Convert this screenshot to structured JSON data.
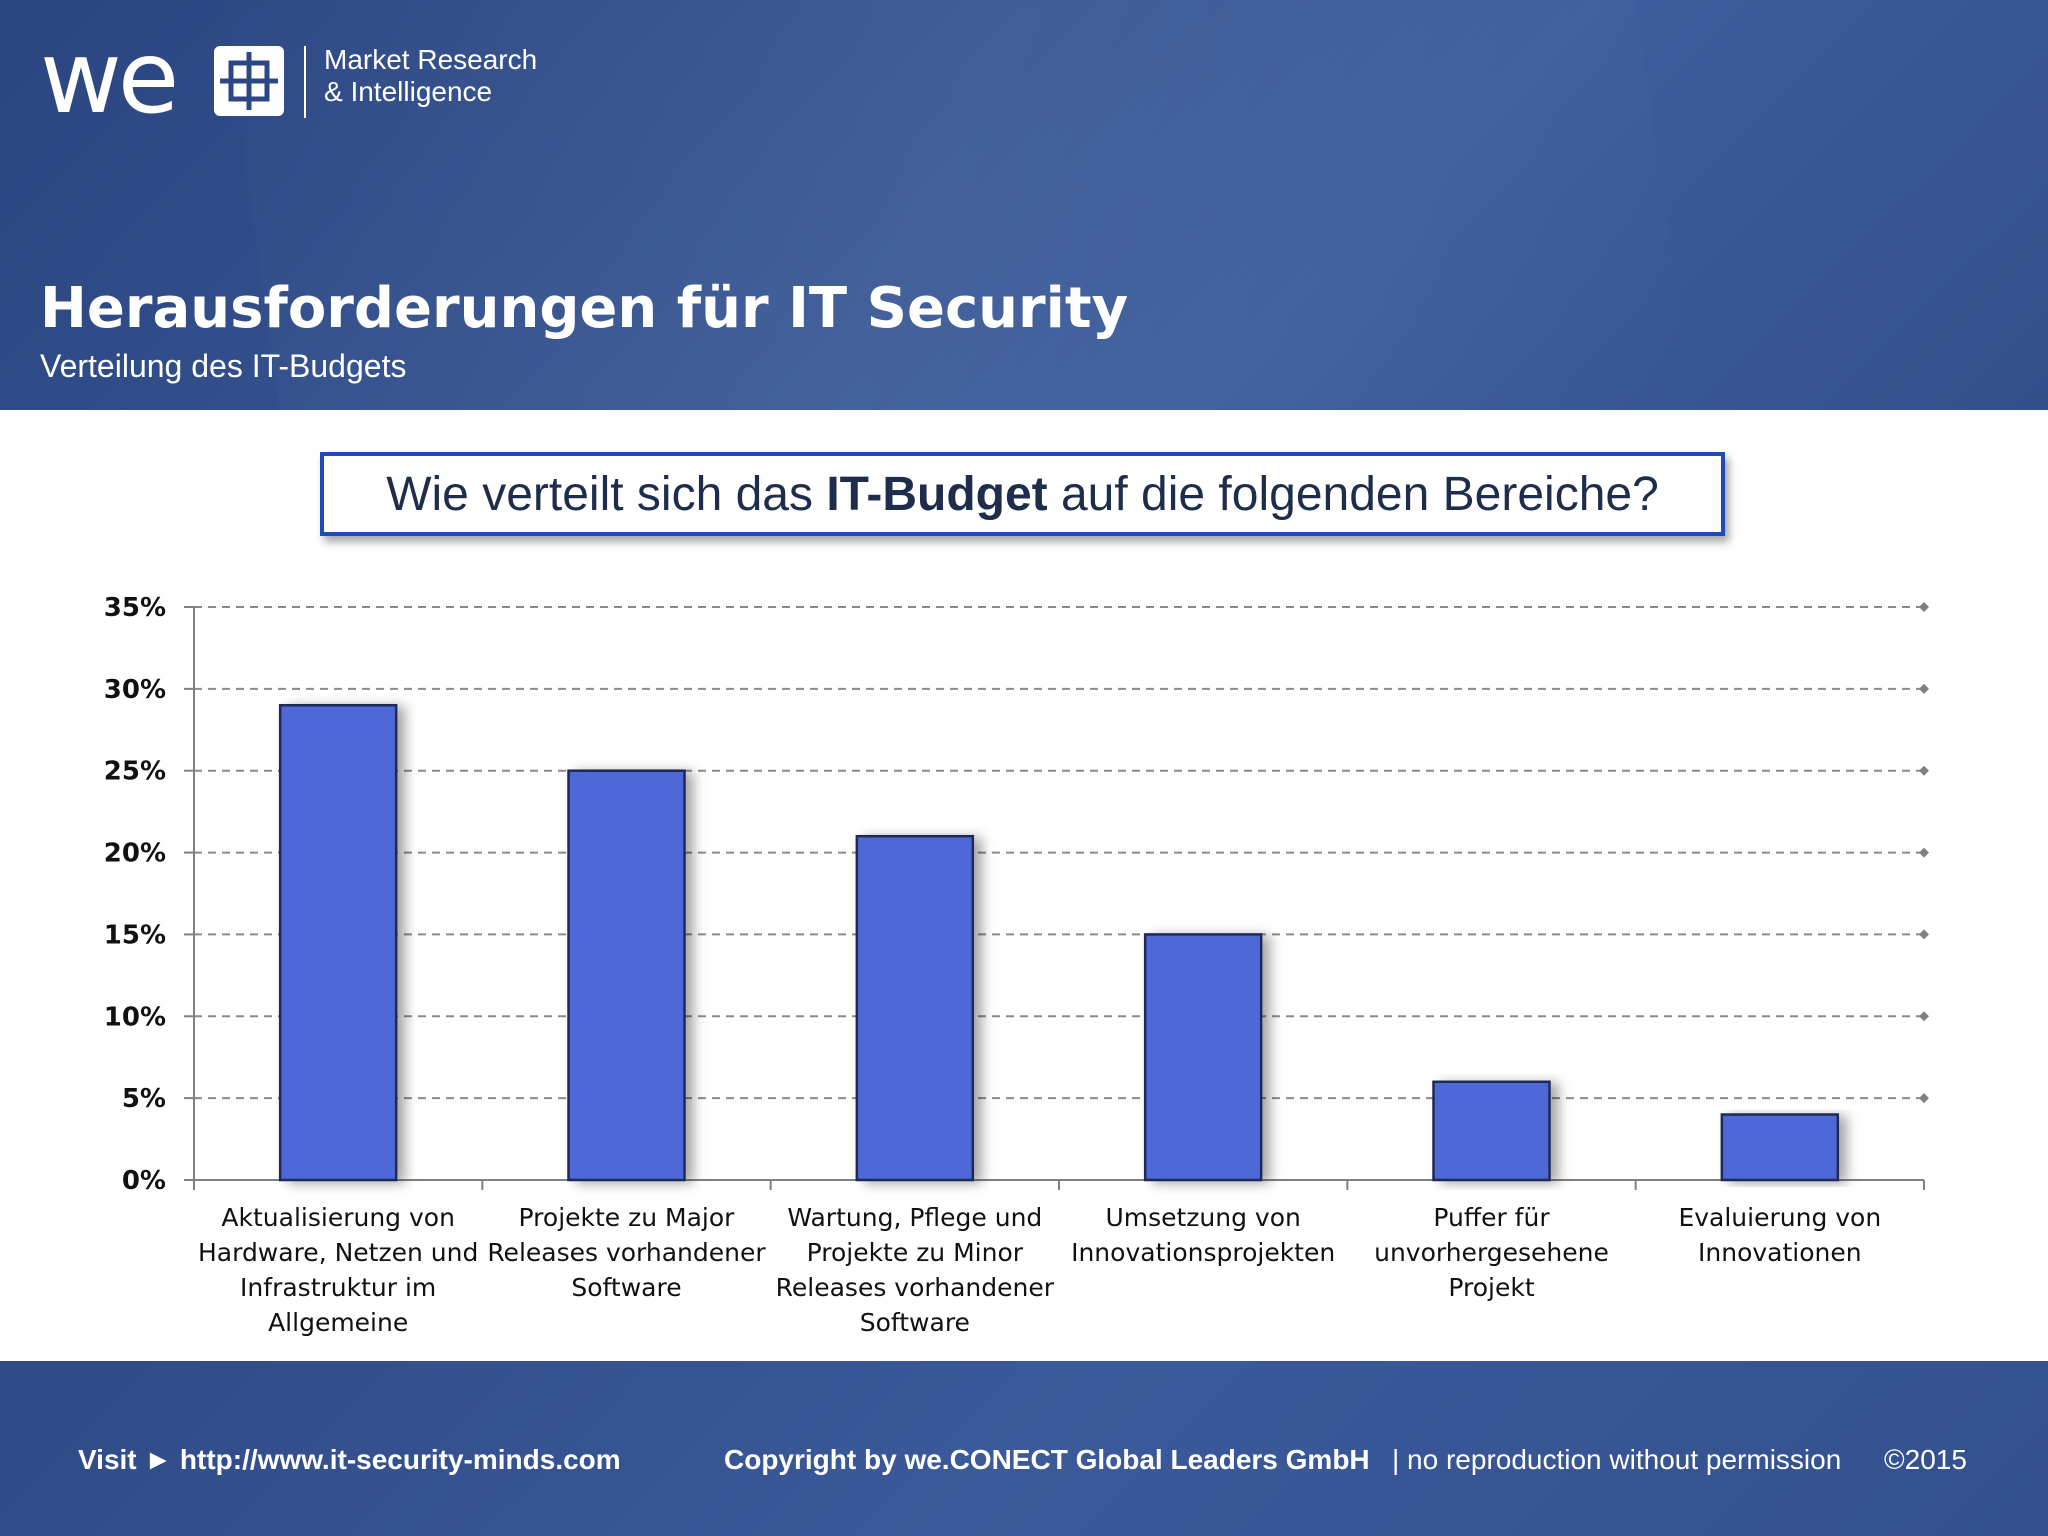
{
  "brand": {
    "logo_word": "we",
    "line1": "Market Research",
    "line2": "& Intelligence"
  },
  "header": {
    "title": "Herausforderungen für IT Security",
    "subtitle": "Verteilung des IT-Budgets"
  },
  "question": {
    "prefix": "Wie verteilt sich das ",
    "emphasis": "IT-Budget",
    "suffix": " auf die folgenden Bereiche?"
  },
  "chart_data": {
    "type": "bar",
    "categories": [
      "Aktualisierung von Hardware, Netzen und Infrastruktur im Allgemeine",
      "Projekte zu Major Releases vorhandener Software",
      "Wartung, Pflege und Projekte zu Minor Releases vorhandener Software",
      "Umsetzung von Innovationsprojekten",
      "Puffer für unvorhergesehene Projekt",
      "Evaluierung von Innovationen"
    ],
    "category_lines": [
      [
        "Aktualisierung von",
        "Hardware, Netzen und",
        "Infrastruktur im",
        "Allgemeine"
      ],
      [
        "Projekte zu Major",
        "Releases vorhandener",
        "Software"
      ],
      [
        "Wartung, Pflege und",
        "Projekte zu Minor",
        "Releases vorhandener",
        "Software"
      ],
      [
        "Umsetzung von",
        "Innovationsprojekten"
      ],
      [
        "Puffer für",
        "unvorhergesehene",
        "Projekt"
      ],
      [
        "Evaluierung von",
        "Innovationen"
      ]
    ],
    "values": [
      29,
      25,
      21,
      15,
      6,
      4
    ],
    "y_ticks": [
      "0%",
      "5%",
      "10%",
      "15%",
      "20%",
      "25%",
      "30%",
      "35%"
    ],
    "ylim": [
      0,
      35
    ],
    "y_unit": "%",
    "grid": true,
    "bar_color": "#4f68d8",
    "bar_border_color": "#1f2a55"
  },
  "footer": {
    "visit_label": "Visit ► http://www.it-security-minds.com",
    "copyright": "Copyright by we.CONECT Global Leaders GmbH",
    "notice": "| no reproduction without permission",
    "year": "©2015"
  }
}
